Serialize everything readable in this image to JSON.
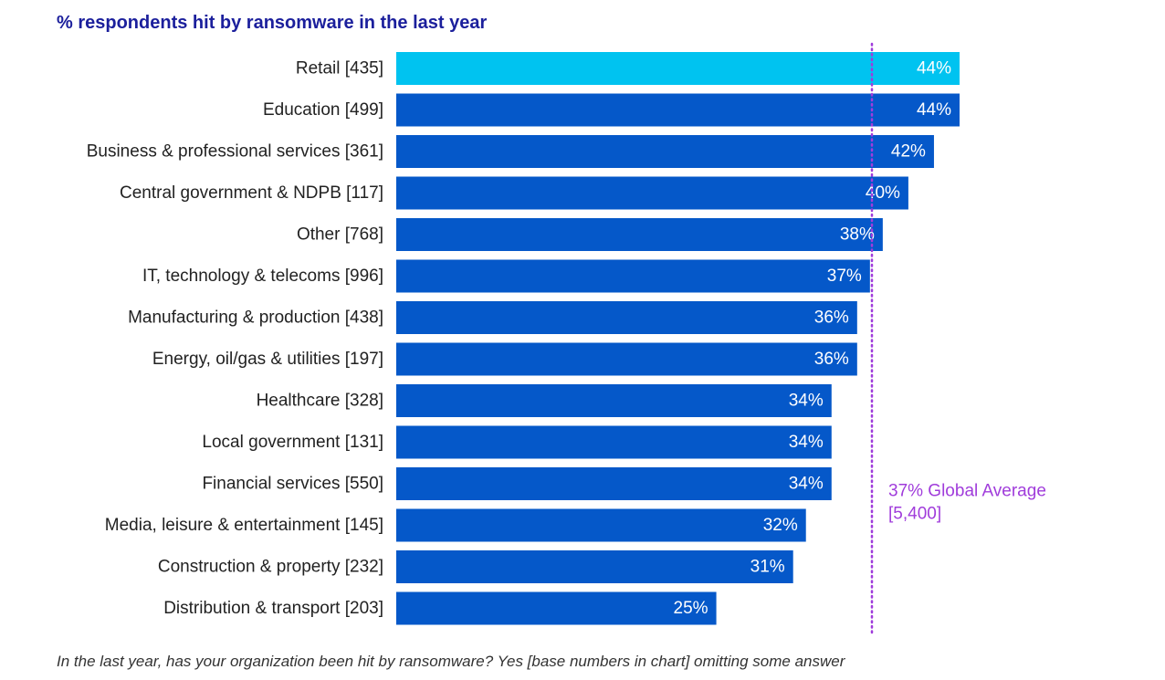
{
  "chart_data": {
    "type": "bar",
    "orientation": "horizontal",
    "title": "% respondents hit by ransomware in the last year",
    "categories": [
      "Retail [435]",
      "Education [499]",
      "Business & professional services [361]",
      "Central government & NDPB [117]",
      "Other [768]",
      "IT, technology & telecoms [996]",
      "Manufacturing & production [438]",
      "Energy, oil/gas & utilities [197]",
      "Healthcare [328]",
      "Local government [131]",
      "Financial services [550]",
      "Media, leisure & entertainment [145]",
      "Construction & property [232]",
      "Distribution & transport [203]"
    ],
    "values": [
      44,
      44,
      42,
      40,
      38,
      37,
      36,
      36,
      34,
      34,
      34,
      32,
      31,
      25
    ],
    "value_labels": [
      "44%",
      "44%",
      "42%",
      "40%",
      "38%",
      "37%",
      "36%",
      "36%",
      "34%",
      "34%",
      "34%",
      "32%",
      "31%",
      "25%"
    ],
    "highlight_index": 0,
    "reference_line": {
      "value": 37,
      "label_line1": "37% Global Average",
      "label_line2": "[5,400]"
    },
    "xlim": [
      0,
      44
    ],
    "grid": false,
    "colors": {
      "bar": "#0558c9",
      "highlight": "#00c3f0",
      "reference": "#a03cdb",
      "title": "#1b1f9c"
    }
  },
  "footnote": "In the last year, has your organization been hit by ransomware? Yes [base numbers in chart] omitting some answer"
}
